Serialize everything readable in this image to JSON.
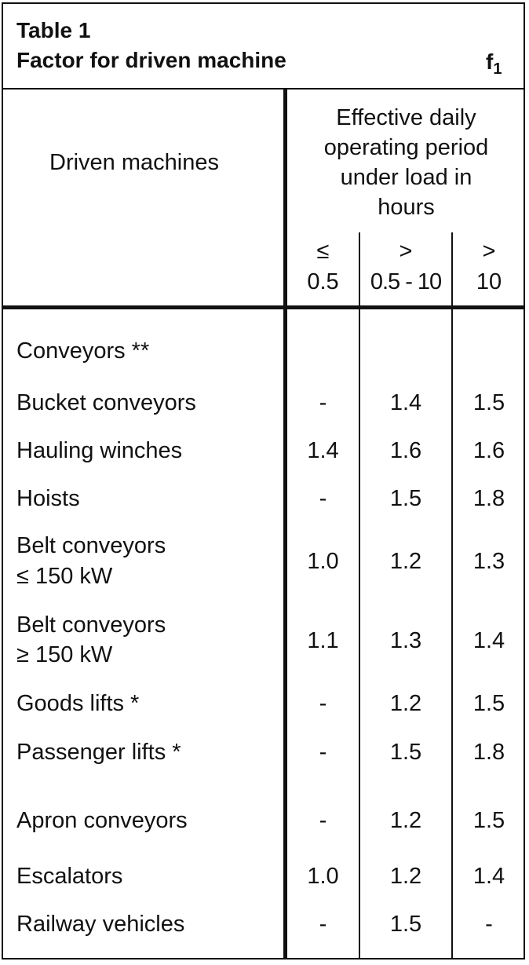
{
  "table": {
    "title_line1": "Table 1",
    "title_line2": "Factor for driven machine",
    "factor_symbol": "f",
    "factor_subscript": "1",
    "col_header_machines": "Driven machines",
    "col_header_period": [
      "Effective daily",
      "operating period",
      "under load in",
      "hours"
    ],
    "sub_headers": [
      {
        "line1": "≤",
        "line2": "0.5"
      },
      {
        "line1": ">",
        "line2": "0.5 - 10"
      },
      {
        "line1": ">",
        "line2": "10"
      }
    ],
    "rows": [
      {
        "label": [
          "Conveyors **"
        ],
        "values": [
          "",
          "",
          ""
        ]
      },
      {
        "label": [
          "Bucket conveyors"
        ],
        "values": [
          "-",
          "1.4",
          "1.5"
        ]
      },
      {
        "label": [
          "Hauling winches"
        ],
        "values": [
          "1.4",
          "1.6",
          "1.6"
        ]
      },
      {
        "label": [
          "Hoists"
        ],
        "values": [
          "-",
          "1.5",
          "1.8"
        ]
      },
      {
        "label": [
          "Belt conveyors",
          "≤ 150 kW"
        ],
        "values": [
          "1.0",
          "1.2",
          "1.3"
        ]
      },
      {
        "label": [
          "Belt conveyors",
          "≥ 150 kW"
        ],
        "values": [
          "1.1",
          "1.3",
          "1.4"
        ]
      },
      {
        "label": [
          "Goods lifts *"
        ],
        "values": [
          "-",
          "1.2",
          "1.5"
        ]
      },
      {
        "label": [
          "Passenger lifts *"
        ],
        "values": [
          "-",
          "1.5",
          "1.8"
        ]
      },
      {
        "label": [
          "Apron conveyors"
        ],
        "values": [
          "-",
          "1.2",
          "1.5"
        ]
      },
      {
        "label": [
          "Escalators"
        ],
        "values": [
          "1.0",
          "1.2",
          "1.4"
        ]
      },
      {
        "label": [
          "Railway vehicles"
        ],
        "values": [
          "-",
          "1.5",
          "-"
        ]
      }
    ]
  }
}
